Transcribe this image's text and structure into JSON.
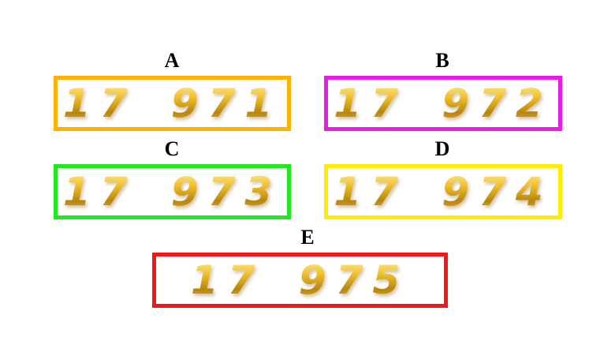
{
  "options": [
    {
      "label": "A",
      "number": "17 971"
    },
    {
      "label": "B",
      "number": "17 972"
    },
    {
      "label": "C",
      "number": "17 973"
    },
    {
      "label": "D",
      "number": "17 974"
    },
    {
      "label": "E",
      "number": "17 975"
    }
  ]
}
